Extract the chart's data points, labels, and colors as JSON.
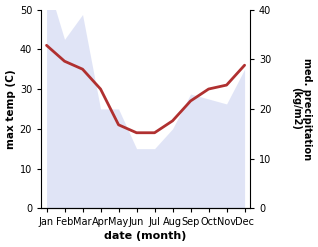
{
  "months": [
    "Jan",
    "Feb",
    "Mar",
    "Apr",
    "May",
    "Jun",
    "Jul",
    "Aug",
    "Sep",
    "Oct",
    "Nov",
    "Dec"
  ],
  "month_x": [
    0,
    1,
    2,
    3,
    4,
    5,
    6,
    7,
    8,
    9,
    10,
    11
  ],
  "temp": [
    41,
    37,
    35,
    30,
    21,
    19,
    19,
    22,
    27,
    30,
    31,
    36
  ],
  "precip": [
    46,
    34,
    39,
    20,
    20,
    12,
    12,
    16,
    23,
    22,
    21,
    28
  ],
  "temp_ylim": [
    0,
    50
  ],
  "precip_ylim": [
    0,
    40
  ],
  "temp_color": "#b03030",
  "precip_color_fill": "#c8cff0",
  "xlabel": "date (month)",
  "ylabel_left": "max temp (C)",
  "ylabel_right": "med. precipitation\n(kg/m2)",
  "temp_linewidth": 2.0,
  "fill_alpha": 0.55,
  "bg_color": "#ffffff"
}
